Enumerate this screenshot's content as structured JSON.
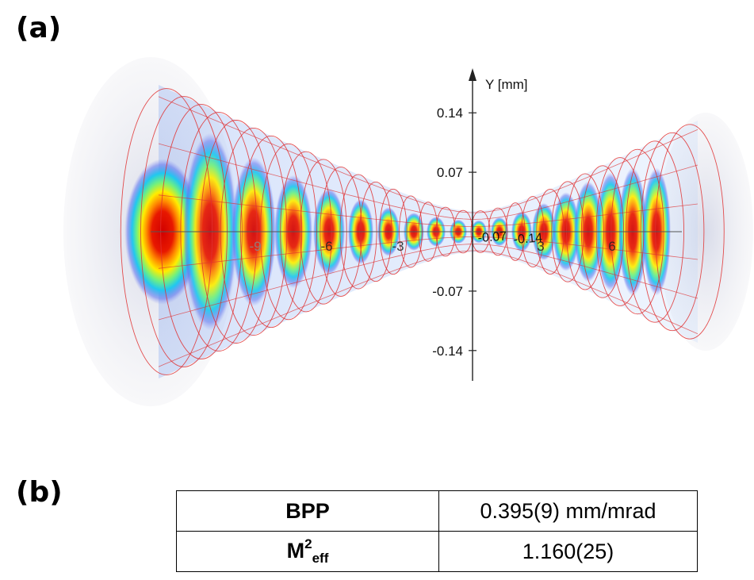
{
  "panels": {
    "a": "(a)",
    "b": "(b)"
  },
  "figure": {
    "y_axis_label": "Y [mm]",
    "y_ticks": [
      0.14,
      0.07,
      -0.07,
      -0.14
    ],
    "z_ticks": [
      -9,
      -6,
      -3,
      3,
      6
    ],
    "center_tick_labels": [
      "-0.07",
      "-0.14"
    ],
    "mesh_color": "#e03030",
    "colormap": [
      "#2050ff",
      "#00d0ff",
      "#00ff80",
      "#ffff00",
      "#ff8000",
      "#e00000"
    ]
  },
  "table": {
    "rows": [
      {
        "param": "BPP",
        "value": "0.395(9) mm/mrad"
      },
      {
        "param_base": "M",
        "param_sup": "2",
        "param_sub": "eff",
        "value": "1.160(25)"
      }
    ]
  }
}
